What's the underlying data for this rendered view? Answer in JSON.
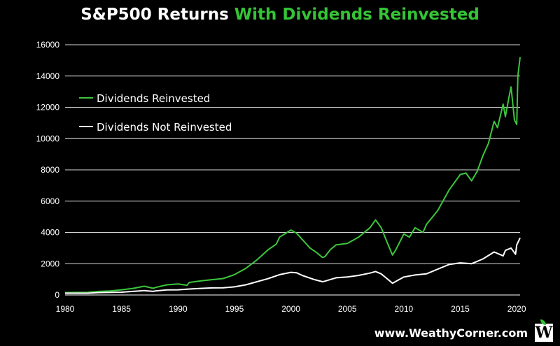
{
  "title": {
    "part1": "S&P500 Returns ",
    "part2": "With Dividends Reinvested"
  },
  "colors": {
    "reinvested": "#3cc63c",
    "not_reinvested": "#ffffff",
    "grid": "#ffffff",
    "background": "#000000"
  },
  "footer": {
    "site": "www.WeathyCorner.com",
    "logo_letter": "W"
  },
  "chart_data": {
    "type": "line",
    "title": "S&P500 Returns With Dividends Reinvested",
    "xlabel": "",
    "ylabel": "",
    "xlim": [
      1980,
      2020.3
    ],
    "ylim": [
      0,
      16000
    ],
    "x_ticks": [
      1980,
      1985,
      1990,
      1995,
      2000,
      2005,
      2010,
      2015,
      2020
    ],
    "y_ticks": [
      0,
      2000,
      4000,
      6000,
      8000,
      10000,
      12000,
      14000,
      16000
    ],
    "grid": "horizontal",
    "legend_position": "top-left",
    "series": [
      {
        "name": "Dividends Reinvested",
        "color": "#3cc63c",
        "points": [
          [
            1980,
            150
          ],
          [
            1981,
            160
          ],
          [
            1982,
            170
          ],
          [
            1983,
            230
          ],
          [
            1984,
            260
          ],
          [
            1985,
            330
          ],
          [
            1986,
            420
          ],
          [
            1987,
            560
          ],
          [
            1987.8,
            430
          ],
          [
            1988,
            480
          ],
          [
            1989,
            650
          ],
          [
            1990,
            700
          ],
          [
            1990.8,
            620
          ],
          [
            1991,
            800
          ],
          [
            1992,
            900
          ],
          [
            1993,
            980
          ],
          [
            1994,
            1050
          ],
          [
            1995,
            1300
          ],
          [
            1996,
            1700
          ],
          [
            1997,
            2250
          ],
          [
            1998,
            2900
          ],
          [
            1998.7,
            3250
          ],
          [
            1999,
            3700
          ],
          [
            2000,
            4150
          ],
          [
            2000.5,
            3950
          ],
          [
            2001,
            3550
          ],
          [
            2001.7,
            3000
          ],
          [
            2002.3,
            2700
          ],
          [
            2002.8,
            2400
          ],
          [
            2003,
            2450
          ],
          [
            2003.5,
            2900
          ],
          [
            2004,
            3200
          ],
          [
            2005,
            3300
          ],
          [
            2006,
            3700
          ],
          [
            2007,
            4300
          ],
          [
            2007.5,
            4800
          ],
          [
            2007.8,
            4500
          ],
          [
            2008,
            4300
          ],
          [
            2008.5,
            3400
          ],
          [
            2009,
            2550
          ],
          [
            2009.3,
            2900
          ],
          [
            2010,
            3900
          ],
          [
            2010.5,
            3700
          ],
          [
            2011,
            4300
          ],
          [
            2011.7,
            4000
          ],
          [
            2012,
            4500
          ],
          [
            2013,
            5400
          ],
          [
            2014,
            6700
          ],
          [
            2015,
            7700
          ],
          [
            2015.5,
            7800
          ],
          [
            2016,
            7300
          ],
          [
            2016.5,
            7900
          ],
          [
            2017,
            8900
          ],
          [
            2017.5,
            9700
          ],
          [
            2018,
            11100
          ],
          [
            2018.3,
            10700
          ],
          [
            2018.8,
            12200
          ],
          [
            2019,
            11400
          ],
          [
            2019.3,
            12600
          ],
          [
            2019.5,
            13300
          ],
          [
            2019.8,
            11200
          ],
          [
            2020,
            10900
          ],
          [
            2020.1,
            14000
          ],
          [
            2020.3,
            15200
          ]
        ]
      },
      {
        "name": "Dividends Not Reinvested",
        "color": "#ffffff",
        "points": [
          [
            1980,
            110
          ],
          [
            1982,
            110
          ],
          [
            1983,
            150
          ],
          [
            1985,
            180
          ],
          [
            1986,
            230
          ],
          [
            1987,
            280
          ],
          [
            1987.8,
            230
          ],
          [
            1988,
            260
          ],
          [
            1989,
            320
          ],
          [
            1990,
            330
          ],
          [
            1991,
            380
          ],
          [
            1992,
            420
          ],
          [
            1993,
            450
          ],
          [
            1994,
            460
          ],
          [
            1995,
            520
          ],
          [
            1996,
            650
          ],
          [
            1997,
            850
          ],
          [
            1998,
            1050
          ],
          [
            1999,
            1300
          ],
          [
            2000,
            1450
          ],
          [
            2000.5,
            1420
          ],
          [
            2001,
            1250
          ],
          [
            2002,
            1000
          ],
          [
            2002.8,
            850
          ],
          [
            2003,
            880
          ],
          [
            2004,
            1100
          ],
          [
            2005,
            1150
          ],
          [
            2006,
            1250
          ],
          [
            2007,
            1400
          ],
          [
            2007.5,
            1500
          ],
          [
            2008,
            1350
          ],
          [
            2008.5,
            1050
          ],
          [
            2009,
            750
          ],
          [
            2009.5,
            950
          ],
          [
            2010,
            1150
          ],
          [
            2011,
            1280
          ],
          [
            2012,
            1350
          ],
          [
            2013,
            1650
          ],
          [
            2014,
            1950
          ],
          [
            2015,
            2050
          ],
          [
            2016,
            2000
          ],
          [
            2017,
            2300
          ],
          [
            2018,
            2750
          ],
          [
            2018.8,
            2500
          ],
          [
            2019,
            2850
          ],
          [
            2019.5,
            3000
          ],
          [
            2019.9,
            2600
          ],
          [
            2020,
            3200
          ],
          [
            2020.3,
            3650
          ]
        ]
      }
    ]
  }
}
